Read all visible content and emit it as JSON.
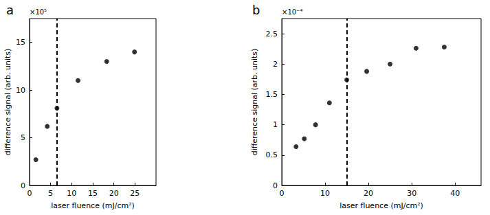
{
  "chart_data": [
    {
      "type": "scatter",
      "title": "a",
      "x_label": "laser fluence (mJ/cm²)",
      "y_label": "difference signal (arb. units)",
      "x": [
        1.5,
        4.2,
        6.5,
        11.5,
        18.3,
        24.9
      ],
      "values": [
        2.7,
        6.2,
        8.1,
        11.0,
        13.0,
        14.0
      ],
      "color": "#000000",
      "marker": "circle",
      "xlim": [
        0,
        30
      ],
      "xticks": [
        0,
        5,
        10,
        15,
        20,
        25
      ],
      "ylim": [
        0,
        17.5
      ],
      "yticks": [
        0,
        5,
        10,
        15
      ],
      "grid": false,
      "annotations": [
        {
          "text": "×10⁵"
        },
        {
          "x": 6.5,
          "line_style": "dashed"
        }
      ]
    },
    {
      "type": "scatter",
      "title": "b",
      "x_label": "laser fluence (mJ/cm²)",
      "y_label": "difference signal (arb. units)",
      "x": [
        3.3,
        5.2,
        7.8,
        11.0,
        15.0,
        19.6,
        25.0,
        31.0,
        37.5
      ],
      "values": [
        0.64,
        0.77,
        1.0,
        1.36,
        1.74,
        1.88,
        2.0,
        2.26,
        2.28
      ],
      "color": "#000000",
      "marker": "circle",
      "xlim": [
        0,
        46
      ],
      "xticks": [
        0,
        10,
        20,
        30,
        40
      ],
      "ylim": [
        0,
        2.75
      ],
      "yticks": [
        0,
        0.5,
        1,
        1.5,
        2,
        2.5
      ],
      "grid": false,
      "annotations": [
        {
          "text": "×10⁻⁴"
        },
        {
          "x": 15,
          "line_style": "dashed"
        }
      ]
    }
  ]
}
